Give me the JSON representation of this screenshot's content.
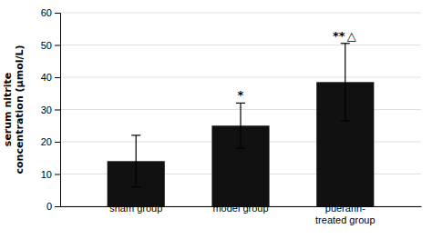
{
  "chart_data": {
    "type": "bar",
    "categories": [
      "sham group",
      "model group",
      "puerarin-\ntreated group"
    ],
    "values": [
      14.0,
      25.0,
      38.5
    ],
    "errors": [
      8.0,
      7.0,
      12.0
    ],
    "color": "#111111",
    "ylabel": "serum nitrite\nconcentration (μmol/L)",
    "ylim": [
      0,
      60
    ],
    "yticks": [
      0,
      10,
      20,
      30,
      40,
      50,
      60
    ],
    "grid": true,
    "annotations": [
      {
        "text": "*",
        "category": "model group"
      },
      {
        "text": "**",
        "category": "puerarin-\ntreated group"
      },
      {
        "text": "△",
        "category": "puerarin-\ntreated group"
      }
    ]
  }
}
